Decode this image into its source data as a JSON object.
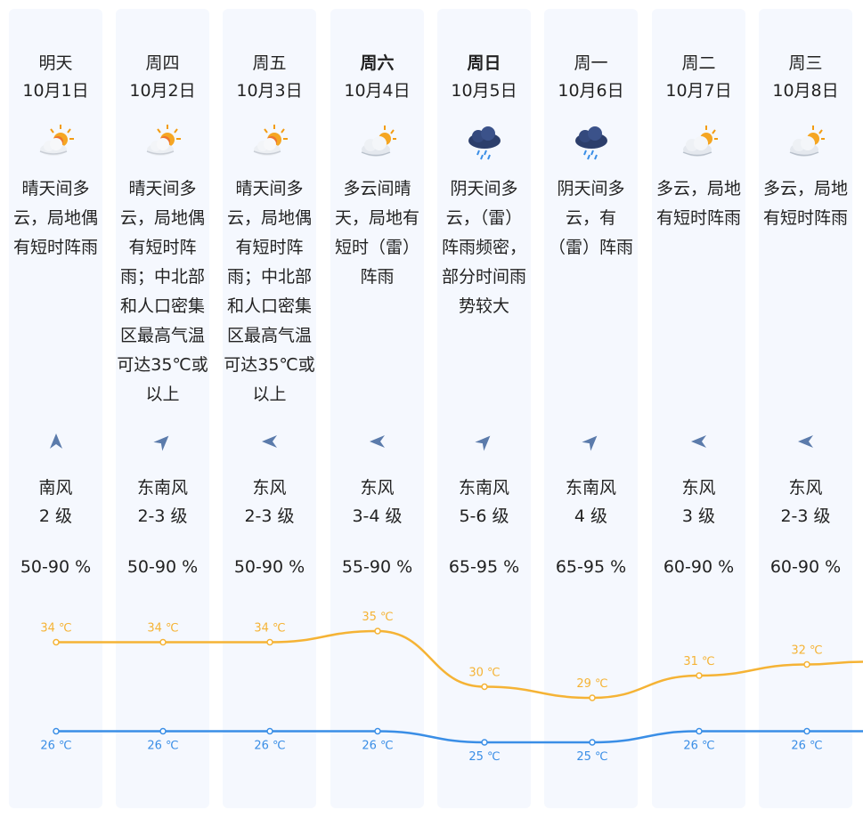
{
  "colors": {
    "high": "#f5b335",
    "low": "#3a8ee6",
    "column_bg": "#f5f8fe"
  },
  "days": [
    {
      "day": "明天",
      "date": "10月1日",
      "bold": false,
      "icon": "sunny-cloudy-icon",
      "desc": "晴天间多云，局地偶有短时阵雨",
      "wind_icon": "wind-arrow-south-icon",
      "wind_rot": 0,
      "wind_dir": "南风",
      "wind_level": "2 级",
      "humidity": "50-90 %",
      "high": 34,
      "high_label": "34 ℃",
      "low": 26,
      "low_label": "26 ℃"
    },
    {
      "day": "周四",
      "date": "10月2日",
      "bold": false,
      "icon": "sunny-cloudy-icon",
      "desc": "晴天间多云，局地偶有短时阵雨；中北部和人口密集区最高气温可达35℃或以上",
      "wind_icon": "wind-arrow-southeast-icon",
      "wind_rot": 45,
      "wind_dir": "东南风",
      "wind_level": "2-3 级",
      "humidity": "50-90 %",
      "high": 34,
      "high_label": "34 ℃",
      "low": 26,
      "low_label": "26 ℃"
    },
    {
      "day": "周五",
      "date": "10月3日",
      "bold": false,
      "icon": "sunny-cloudy-icon",
      "desc": "晴天间多云，局地偶有短时阵雨；中北部和人口密集区最高气温可达35℃或以上",
      "wind_icon": "wind-arrow-east-icon",
      "wind_rot": -90,
      "wind_dir": "东风",
      "wind_level": "2-3 级",
      "humidity": "50-90 %",
      "high": 34,
      "high_label": "34 ℃",
      "low": 26,
      "low_label": "26 ℃"
    },
    {
      "day": "周六",
      "date": "10月4日",
      "bold": true,
      "icon": "cloudy-sunny-icon",
      "desc": "多云间晴天，局地有短时（雷）阵雨",
      "wind_icon": "wind-arrow-east-icon",
      "wind_rot": -90,
      "wind_dir": "东风",
      "wind_level": "3-4 级",
      "humidity": "55-90 %",
      "high": 35,
      "high_label": "35 ℃",
      "low": 26,
      "low_label": "26 ℃"
    },
    {
      "day": "周日",
      "date": "10月5日",
      "bold": true,
      "icon": "overcast-rain-icon",
      "desc": "阴天间多云，（雷）阵雨频密，部分时间雨势较大",
      "wind_icon": "wind-arrow-southeast-icon",
      "wind_rot": 45,
      "wind_dir": "东南风",
      "wind_level": "5-6 级",
      "humidity": "65-95 %",
      "high": 30,
      "high_label": "30 ℃",
      "low": 25,
      "low_label": "25 ℃"
    },
    {
      "day": "周一",
      "date": "10月6日",
      "bold": false,
      "icon": "overcast-rain-icon",
      "desc": "阴天间多云，有（雷）阵雨",
      "wind_icon": "wind-arrow-southeast-icon",
      "wind_rot": 45,
      "wind_dir": "东南风",
      "wind_level": "4 级",
      "humidity": "65-95 %",
      "high": 29,
      "high_label": "29 ℃",
      "low": 25,
      "low_label": "25 ℃"
    },
    {
      "day": "周二",
      "date": "10月7日",
      "bold": false,
      "icon": "cloudy-sunny-icon",
      "desc": "多云，局地有短时阵雨",
      "wind_icon": "wind-arrow-east-icon",
      "wind_rot": -90,
      "wind_dir": "东风",
      "wind_level": "3 级",
      "humidity": "60-90 %",
      "high": 31,
      "high_label": "31 ℃",
      "low": 26,
      "low_label": "26 ℃"
    },
    {
      "day": "周三",
      "date": "10月8日",
      "bold": false,
      "icon": "cloudy-sunny-icon",
      "desc": "多云，局地有短时阵雨",
      "wind_icon": "wind-arrow-east-icon",
      "wind_rot": -90,
      "wind_dir": "东风",
      "wind_level": "2-3 级",
      "humidity": "60-90 %",
      "high": 32,
      "high_label": "32 ℃",
      "low": 26,
      "low_label": "26 ℃"
    }
  ]
}
